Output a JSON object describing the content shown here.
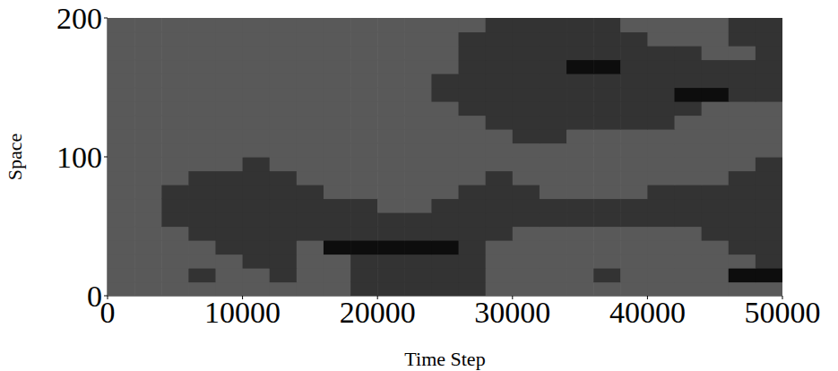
{
  "chart_data": {
    "type": "heatmap",
    "x_label": "Time Step",
    "y_label": "Space",
    "xlim": [
      0,
      50000
    ],
    "ylim": [
      0,
      200
    ],
    "xticks": [
      0,
      10000,
      20000,
      30000,
      40000,
      50000
    ],
    "yticks": [
      0,
      100,
      200
    ],
    "x_bins": [
      0,
      2000,
      4000,
      6000,
      8000,
      10000,
      12000,
      14000,
      16000,
      18000,
      20000,
      22000,
      24000,
      26000,
      28000,
      30000,
      32000,
      34000,
      36000,
      38000,
      40000,
      42000,
      44000,
      46000,
      48000,
      50000
    ],
    "y_bins": [
      0,
      10,
      20,
      30,
      40,
      50,
      60,
      70,
      80,
      90,
      100,
      110,
      120,
      130,
      140,
      150,
      160,
      170,
      180,
      190,
      200
    ],
    "color_range": [
      0,
      100
    ],
    "cells": [
      [
        35,
        35,
        35,
        35,
        35,
        35,
        35,
        35,
        35,
        20,
        20,
        20,
        20,
        20,
        35,
        35,
        35,
        35,
        35,
        35,
        35,
        35,
        35,
        35,
        35
      ],
      [
        35,
        35,
        35,
        20,
        35,
        35,
        20,
        35,
        35,
        20,
        20,
        20,
        20,
        20,
        35,
        35,
        35,
        35,
        20,
        35,
        35,
        35,
        35,
        5,
        5
      ],
      [
        35,
        35,
        35,
        35,
        35,
        20,
        20,
        35,
        35,
        20,
        20,
        20,
        20,
        20,
        35,
        35,
        35,
        35,
        35,
        35,
        35,
        35,
        35,
        35,
        20
      ],
      [
        35,
        35,
        35,
        35,
        20,
        20,
        20,
        35,
        5,
        5,
        5,
        5,
        5,
        20,
        35,
        35,
        35,
        35,
        35,
        35,
        35,
        35,
        35,
        20,
        20
      ],
      [
        35,
        35,
        35,
        20,
        20,
        20,
        20,
        20,
        20,
        20,
        20,
        20,
        20,
        20,
        20,
        35,
        35,
        35,
        35,
        35,
        35,
        35,
        20,
        20,
        20
      ],
      [
        35,
        35,
        20,
        20,
        20,
        20,
        20,
        20,
        20,
        20,
        20,
        20,
        20,
        20,
        20,
        20,
        20,
        20,
        20,
        20,
        20,
        20,
        20,
        20,
        20
      ],
      [
        35,
        35,
        20,
        20,
        20,
        20,
        20,
        20,
        20,
        20,
        35,
        35,
        20,
        20,
        20,
        20,
        20,
        20,
        20,
        20,
        20,
        20,
        20,
        20,
        20
      ],
      [
        35,
        35,
        20,
        20,
        20,
        20,
        20,
        20,
        35,
        35,
        35,
        35,
        35,
        20,
        20,
        20,
        35,
        35,
        35,
        35,
        20,
        20,
        20,
        20,
        20
      ],
      [
        35,
        35,
        35,
        20,
        20,
        20,
        20,
        35,
        35,
        35,
        35,
        35,
        35,
        35,
        20,
        35,
        35,
        35,
        35,
        35,
        35,
        35,
        35,
        20,
        20
      ],
      [
        35,
        35,
        35,
        35,
        35,
        20,
        35,
        35,
        35,
        35,
        35,
        35,
        35,
        35,
        35,
        35,
        35,
        35,
        35,
        35,
        35,
        35,
        35,
        35,
        20
      ],
      [
        35,
        35,
        35,
        35,
        35,
        35,
        35,
        35,
        35,
        35,
        35,
        35,
        35,
        35,
        35,
        35,
        35,
        35,
        35,
        35,
        35,
        35,
        35,
        35,
        35
      ],
      [
        35,
        35,
        35,
        35,
        35,
        35,
        35,
        35,
        35,
        35,
        35,
        35,
        35,
        35,
        35,
        20,
        20,
        35,
        35,
        35,
        35,
        35,
        35,
        35,
        35
      ],
      [
        35,
        35,
        35,
        35,
        35,
        35,
        35,
        35,
        35,
        35,
        35,
        35,
        35,
        35,
        20,
        20,
        20,
        20,
        20,
        20,
        20,
        35,
        35,
        35,
        35
      ],
      [
        35,
        35,
        35,
        35,
        35,
        35,
        35,
        35,
        35,
        35,
        35,
        35,
        35,
        20,
        20,
        20,
        20,
        20,
        20,
        20,
        20,
        20,
        35,
        35,
        35
      ],
      [
        35,
        35,
        35,
        35,
        35,
        35,
        35,
        35,
        35,
        35,
        35,
        35,
        20,
        20,
        20,
        20,
        20,
        20,
        20,
        20,
        20,
        5,
        5,
        20,
        20
      ],
      [
        35,
        35,
        35,
        35,
        35,
        35,
        35,
        35,
        35,
        35,
        35,
        35,
        20,
        20,
        20,
        20,
        20,
        20,
        20,
        20,
        20,
        20,
        20,
        20,
        20
      ],
      [
        35,
        35,
        35,
        35,
        35,
        35,
        35,
        35,
        35,
        35,
        35,
        35,
        35,
        20,
        20,
        20,
        20,
        5,
        5,
        20,
        20,
        20,
        20,
        20,
        20
      ],
      [
        35,
        35,
        35,
        35,
        35,
        35,
        35,
        35,
        35,
        35,
        35,
        35,
        35,
        20,
        20,
        20,
        20,
        20,
        20,
        20,
        20,
        20,
        35,
        35,
        20
      ],
      [
        35,
        35,
        35,
        35,
        35,
        35,
        35,
        35,
        35,
        35,
        35,
        35,
        35,
        20,
        20,
        20,
        20,
        20,
        20,
        20,
        35,
        35,
        35,
        20,
        20
      ],
      [
        35,
        35,
        35,
        35,
        35,
        35,
        35,
        35,
        35,
        35,
        35,
        35,
        35,
        35,
        20,
        20,
        20,
        20,
        20,
        35,
        35,
        35,
        35,
        20,
        20
      ]
    ]
  }
}
